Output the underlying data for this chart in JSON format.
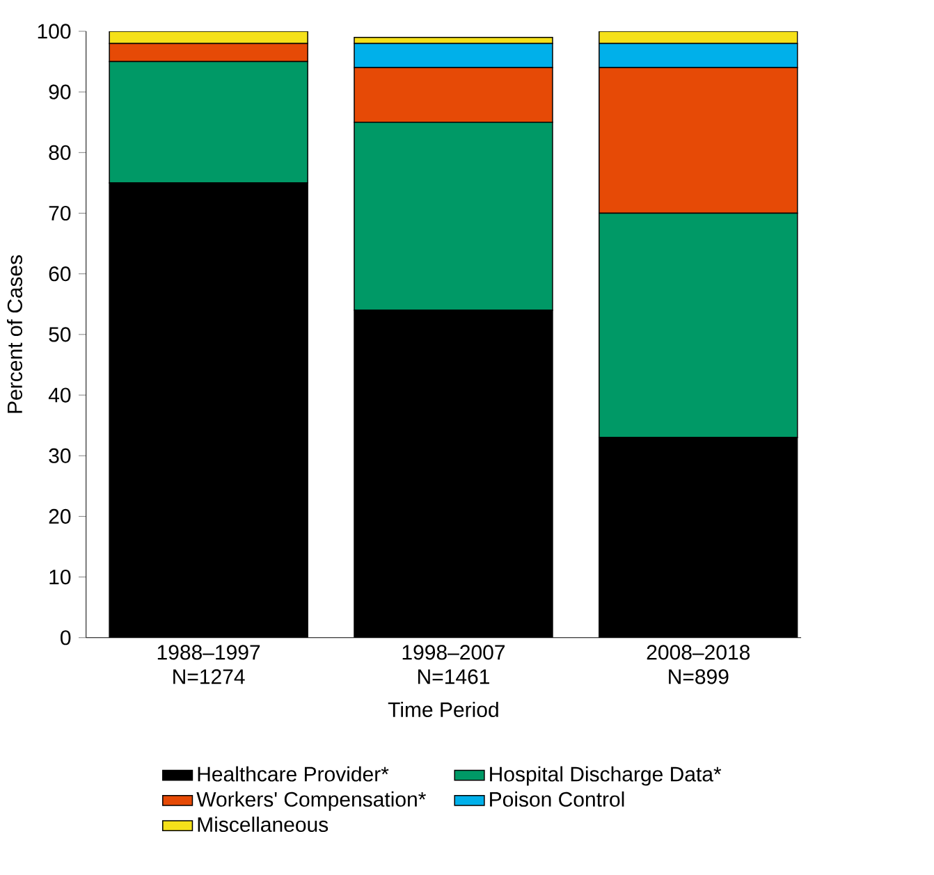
{
  "chart_data": {
    "type": "bar",
    "stacked": true,
    "xlabel": "Time Period",
    "ylabel": "Percent of Cases",
    "categories": [
      "1988–1997 N=1274",
      "1998–2007 N=1461",
      "2008–2018 N=899"
    ],
    "series": [
      {
        "name": "Healthcare Provider*",
        "color": "#000000",
        "values": [
          75,
          54,
          33
        ]
      },
      {
        "name": "Hospital Discharge Data*",
        "color": "#009966",
        "values": [
          20,
          31,
          37
        ]
      },
      {
        "name": "Workers' Compensation*",
        "color": "#e64a06",
        "values": [
          3,
          9,
          24
        ]
      },
      {
        "name": "Poison Control",
        "color": "#00b0ea",
        "values": [
          0,
          4,
          4
        ]
      },
      {
        "name": "Miscellaneous",
        "color": "#f5e11a",
        "values": [
          2,
          1,
          2
        ]
      }
    ],
    "ylim": [
      0,
      100
    ],
    "yticks": [
      0,
      10,
      20,
      30,
      40,
      50,
      60,
      70,
      80,
      90,
      100
    ],
    "grid": false,
    "legend": "bottom"
  }
}
